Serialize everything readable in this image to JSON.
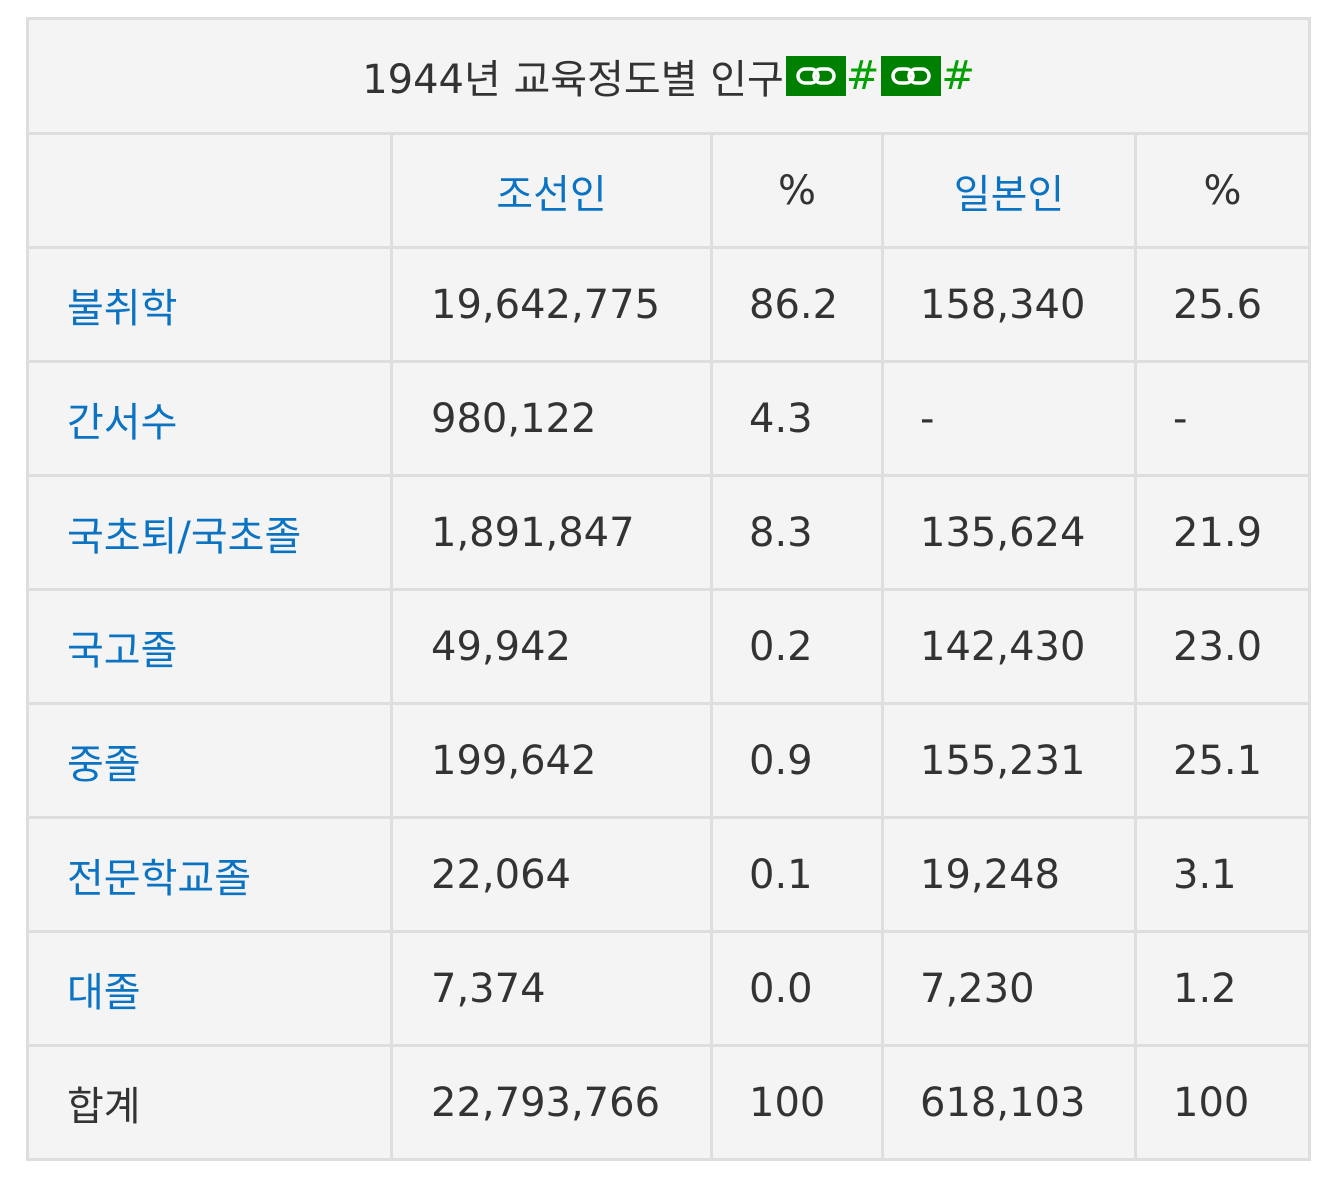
{
  "table": {
    "title": "1944년 교육정도별 인구",
    "title_link_icon": "link-icon",
    "title_hash_1": "#",
    "title_hash_2": "#",
    "headers": {
      "blank": "",
      "joseon": "조선인",
      "pct1": "%",
      "japanese": "일본인",
      "pct2": "%"
    },
    "rows": [
      {
        "label": "불취학",
        "joseon": "19,642,775",
        "pct1": "86.2",
        "japanese": "158,340",
        "pct2": "25.6"
      },
      {
        "label": "간서수",
        "joseon": "980,122",
        "pct1": "4.3",
        "japanese": "-",
        "pct2": "-"
      },
      {
        "label": "국초퇴/국초졸",
        "joseon": "1,891,847",
        "pct1": "8.3",
        "japanese": "135,624",
        "pct2": "21.9"
      },
      {
        "label": "국고졸",
        "joseon": "49,942",
        "pct1": "0.2",
        "japanese": "142,430",
        "pct2": "23.0"
      },
      {
        "label": "중졸",
        "joseon": "199,642",
        "pct1": "0.9",
        "japanese": "155,231",
        "pct2": "25.1"
      },
      {
        "label": "전문학교졸",
        "joseon": "22,064",
        "pct1": "0.1",
        "japanese": "19,248",
        "pct2": "3.1"
      },
      {
        "label": "대졸",
        "joseon": "7,374",
        "pct1": "0.0",
        "japanese": "7,230",
        "pct2": "1.2"
      },
      {
        "label": "합계",
        "joseon": "22,793,766",
        "pct1": "100",
        "japanese": "618,103",
        "pct2": "100"
      }
    ]
  },
  "colors": {
    "link": "#0b73c2",
    "text": "#333333",
    "badge": "#008000",
    "hash": "#00a000",
    "cell_bg": "#f4f4f4",
    "border": "#dedede"
  }
}
